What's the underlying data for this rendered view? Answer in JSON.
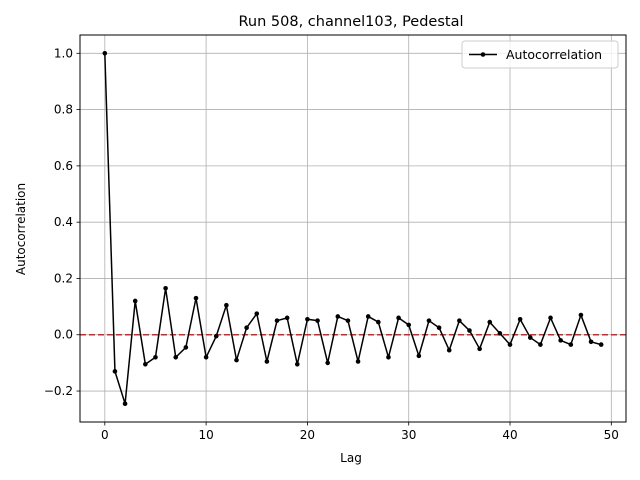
{
  "chart_data": {
    "type": "line",
    "title": "Run 508, channel103, Pedestal",
    "xlabel": "Lag",
    "ylabel": "Autocorrelation",
    "xlim": [
      -2.45,
      51.45
    ],
    "ylim": [
      -0.31,
      1.065
    ],
    "xticks": [
      0,
      10,
      20,
      30,
      40,
      50
    ],
    "xtick_labels": [
      "0",
      "10",
      "20",
      "30",
      "40",
      "50"
    ],
    "yticks": [
      -0.2,
      0.0,
      0.2,
      0.4,
      0.6,
      0.8,
      1.0
    ],
    "ytick_labels": [
      "−0.2",
      "0.0",
      "0.2",
      "0.4",
      "0.6",
      "0.8",
      "1.0"
    ],
    "grid": true,
    "legend_position": "top-right",
    "series": [
      {
        "name": "Autocorrelation",
        "color": "#000000",
        "marker": "dot",
        "x": [
          0,
          1,
          2,
          3,
          4,
          5,
          6,
          7,
          8,
          9,
          10,
          11,
          12,
          13,
          14,
          15,
          16,
          17,
          18,
          19,
          20,
          21,
          22,
          23,
          24,
          25,
          26,
          27,
          28,
          29,
          30,
          31,
          32,
          33,
          34,
          35,
          36,
          37,
          38,
          39,
          40,
          41,
          42,
          43,
          44,
          45,
          46,
          47,
          48,
          49
        ],
        "values": [
          1.0,
          -0.13,
          -0.245,
          0.12,
          -0.105,
          -0.08,
          0.165,
          -0.08,
          -0.045,
          0.13,
          -0.08,
          -0.005,
          0.105,
          -0.09,
          0.025,
          0.075,
          -0.095,
          0.05,
          0.06,
          -0.105,
          0.055,
          0.05,
          -0.1,
          0.065,
          0.05,
          -0.095,
          0.065,
          0.045,
          -0.08,
          0.06,
          0.035,
          -0.075,
          0.05,
          0.025,
          -0.055,
          0.05,
          0.015,
          -0.05,
          0.045,
          0.005,
          -0.035,
          0.055,
          -0.01,
          -0.035,
          0.06,
          -0.02,
          -0.035,
          0.07,
          -0.025,
          -0.035
        ]
      }
    ],
    "reference_line": {
      "y": 0.0,
      "color": "#d62728",
      "style": "dashed"
    }
  }
}
